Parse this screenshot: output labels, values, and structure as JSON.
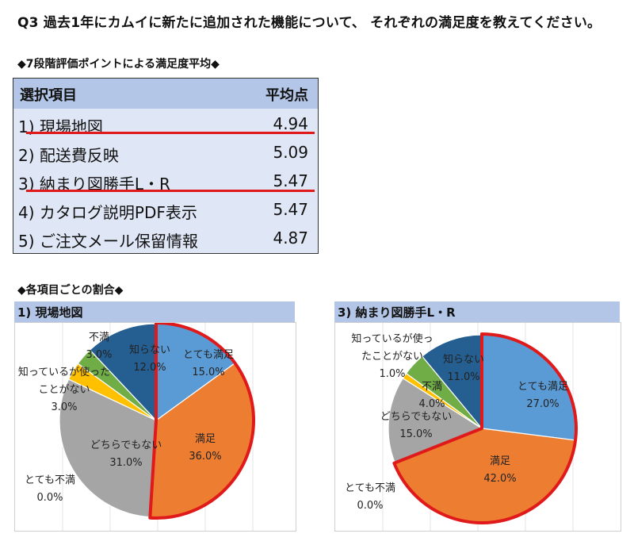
{
  "question": "Q3 過去1年にカムイに新たに追加された機能について、 それぞれの満足度を教えてください。",
  "avg_section_title": "◆7段階評価ポイントによる満足度平均◆",
  "avg_table": {
    "header_item": "選択項目",
    "header_score": "平均点",
    "rows": [
      {
        "label": "1) 現場地図",
        "score": "4.94"
      },
      {
        "label": "2) 配送費反映",
        "score": "5.09"
      },
      {
        "label": "3) 納まり図勝手L・R",
        "score": "5.47"
      },
      {
        "label": "4) カタログ説明PDF表示",
        "score": "5.47"
      },
      {
        "label": "5) ご注文メール保留情報",
        "score": "4.87"
      }
    ]
  },
  "ratio_section_title": "◆各項目ごとの割合◆",
  "colors": {
    "とても満足": "#5b9bd5",
    "満足": "#ed7d31",
    "どちらでもない": "#a5a5a5",
    "ことがない": "#ffc000",
    "不満": "#70ad47",
    "知らない": "#255e91",
    "highlight": "#e0191a"
  },
  "chart_data": [
    {
      "type": "pie",
      "title": "1) 現場地図",
      "slices": [
        {
          "label": "とても満足",
          "value": 15.0,
          "value_label": "15.0%"
        },
        {
          "label": "満足",
          "value": 36.0,
          "value_label": "36.0%"
        },
        {
          "label": "どちらでもない",
          "value": 31.0,
          "value_label": "31.0%"
        },
        {
          "label_lines": [
            "知っているが使った",
            "ことがない"
          ],
          "value": 3.0,
          "value_label": "3.0%"
        },
        {
          "label": "不満",
          "value": 3.0,
          "value_label": "3.0%"
        },
        {
          "label": "知らない",
          "value": 12.0,
          "value_label": "12.0%"
        },
        {
          "label": "とても不満",
          "value": 0.0,
          "value_label": "0.0%"
        }
      ]
    },
    {
      "type": "pie",
      "title": "3) 納まり図勝手L・R",
      "slices": [
        {
          "label": "とても満足",
          "value": 27.0,
          "value_label": "27.0%"
        },
        {
          "label": "満足",
          "value": 42.0,
          "value_label": "42.0%"
        },
        {
          "label": "どちらでもない",
          "value": 15.0,
          "value_label": "15.0%"
        },
        {
          "label_lines": [
            "知っているが使っ",
            "たことがない"
          ],
          "value": 1.0,
          "value_label": "1.0%"
        },
        {
          "label": "不満",
          "value": 4.0,
          "value_label": "4.0%"
        },
        {
          "label": "知らない",
          "value": 11.0,
          "value_label": "11.0%"
        },
        {
          "label": "とても不満",
          "value": 0.0,
          "value_label": "0.0%"
        }
      ]
    }
  ]
}
